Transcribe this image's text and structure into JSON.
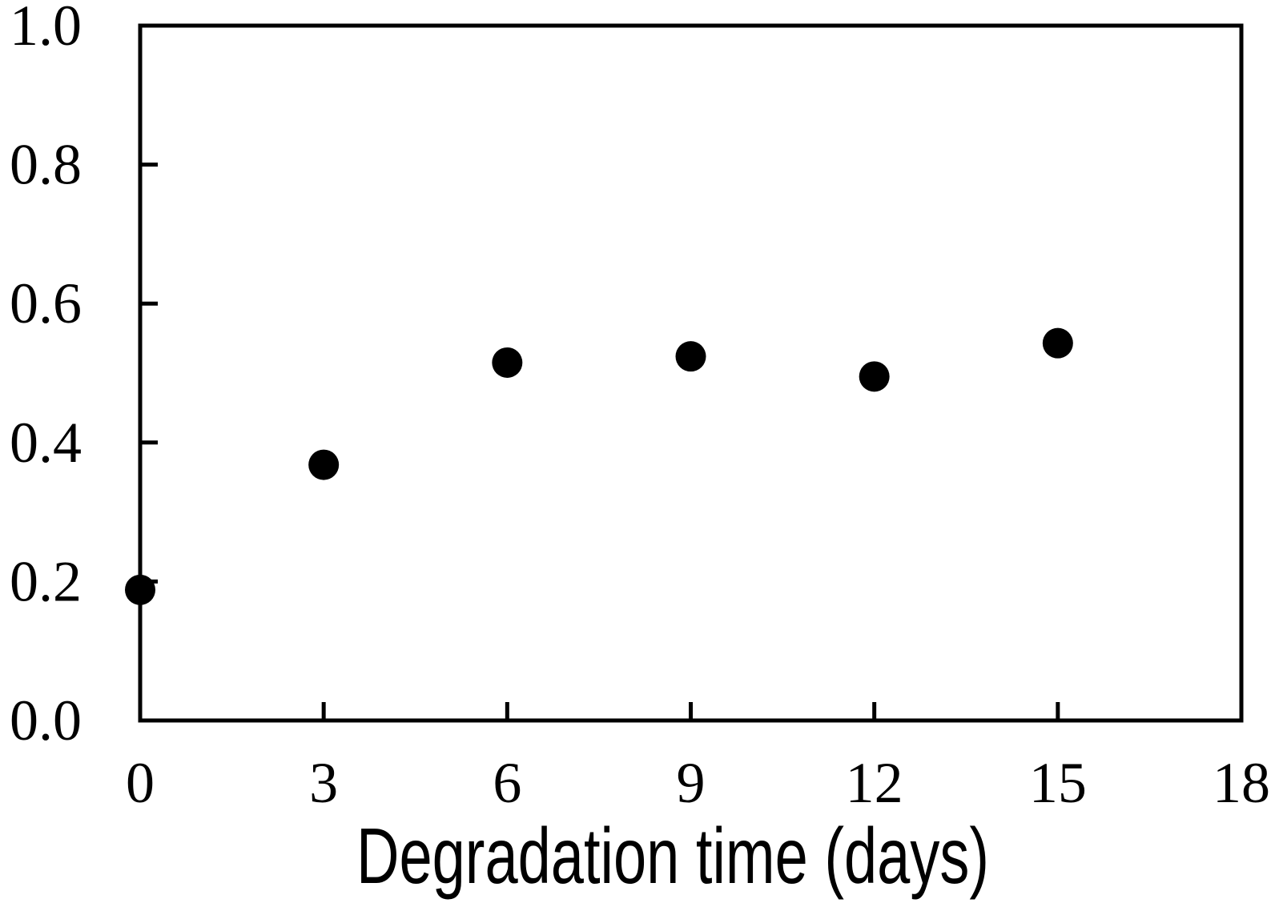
{
  "figure": {
    "background_color": "#ffffff",
    "axis_color": "#000000",
    "marker_color": "#000000"
  },
  "chart_data": {
    "type": "scatter",
    "title": "",
    "xlabel": "Degradation time (days)",
    "ylabel": "",
    "x": [
      0,
      3,
      6,
      9,
      12,
      15
    ],
    "y": [
      0.19,
      0.37,
      0.52,
      0.52,
      0.5,
      0.54
    ],
    "y_precise": [
      0.188,
      0.368,
      0.515,
      0.524,
      0.495,
      0.543
    ],
    "xlim": [
      0,
      18
    ],
    "ylim": [
      0.0,
      1.0
    ],
    "x_tick_labels": [
      "0",
      "3",
      "6",
      "9",
      "12",
      "15",
      "18"
    ],
    "x_tick_values": [
      0,
      3,
      6,
      9,
      12,
      15,
      18
    ],
    "y_tick_labels": [
      "0.0",
      "0.2",
      "0.4",
      "0.6",
      "0.8",
      "1.0"
    ],
    "y_tick_values": [
      0.0,
      0.2,
      0.4,
      0.6,
      0.8,
      1.0
    ],
    "grid": false,
    "legend": null,
    "marker": {
      "shape": "circle",
      "radius_px": 19,
      "color": "#000000"
    }
  }
}
